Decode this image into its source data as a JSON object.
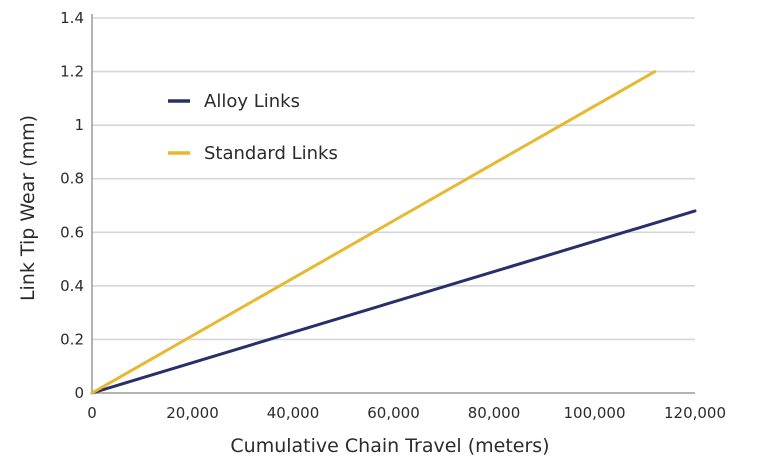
{
  "chart_data": {
    "type": "line",
    "title": "",
    "xlabel": "Cumulative Chain Travel (meters)",
    "ylabel": "Link Tip Wear (mm)",
    "xlim": [
      0,
      120000
    ],
    "ylim": [
      0,
      1.4
    ],
    "x_ticks": [
      0,
      20000,
      40000,
      60000,
      80000,
      100000,
      120000
    ],
    "x_tick_labels": [
      "0",
      "20,000",
      "40,000",
      "60,000",
      "80,000",
      "100,000",
      "120,000"
    ],
    "y_ticks": [
      0,
      0.2,
      0.4,
      0.6,
      0.8,
      1,
      1.2,
      1.4
    ],
    "y_tick_labels": [
      "0",
      "0.2",
      "0.4",
      "0.6",
      "0.8",
      "1",
      "1.2",
      "1.4"
    ],
    "grid": "horizontal",
    "legend_position": "top-left",
    "series": [
      {
        "name": "Alloy Links",
        "color": "#27306a",
        "x": [
          0,
          120000
        ],
        "y": [
          0,
          0.68
        ]
      },
      {
        "name": "Standard Links",
        "color": "#e8b830",
        "x": [
          0,
          112000
        ],
        "y": [
          0,
          1.2
        ]
      }
    ]
  }
}
